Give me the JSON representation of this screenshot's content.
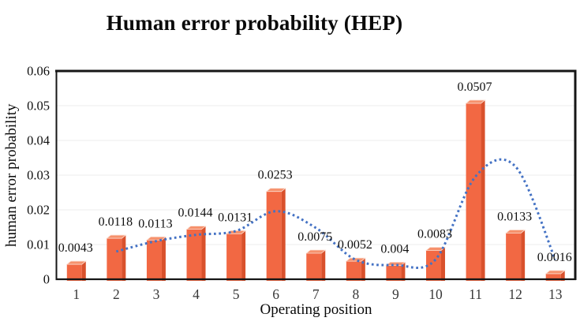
{
  "title": "Human error probability (HEP)",
  "chart_data": {
    "type": "bar",
    "title": "Human error probability (HEP)",
    "xlabel": "Operating position",
    "ylabel": "human error probability",
    "categories": [
      "1",
      "2",
      "3",
      "4",
      "5",
      "6",
      "7",
      "8",
      "9",
      "10",
      "11",
      "12",
      "13"
    ],
    "ylim": [
      0,
      0.06
    ],
    "yticks": [
      "0",
      "0.01",
      "0.02",
      "0.03",
      "0.04",
      "0.05",
      "0.06"
    ],
    "grid": true,
    "legend": false,
    "series": [
      {
        "name": "HEP",
        "type": "bar",
        "values": [
          0.0043,
          0.0118,
          0.0113,
          0.0144,
          0.0131,
          0.0253,
          0.0075,
          0.0052,
          0.004,
          0.0083,
          0.0507,
          0.0133,
          0.0016
        ],
        "data_labels": [
          "0.0043",
          "0.0118",
          "0.0113",
          "0.0144",
          "0.0131",
          "0.0253",
          "0.0075",
          "0.0052",
          "0.004",
          "0.0083",
          "0.0507",
          "0.0133",
          "0.0016"
        ]
      },
      {
        "name": "trend-line",
        "type": "dotted_line",
        "x": [
          2,
          3,
          4,
          5,
          6,
          7,
          8,
          9,
          10,
          11,
          12,
          13
        ],
        "values": [
          0.008,
          0.011,
          0.0128,
          0.0139,
          0.0196,
          0.0148,
          0.0056,
          0.0041,
          0.0057,
          0.0296,
          0.0325,
          0.0056
        ]
      }
    ],
    "colors": {
      "bar_face": "#F26843",
      "bar_side": "#D9512C",
      "bar_top": "#F6916C",
      "bar_top_highlight": "#FBE0D4",
      "trend_line": "#4472C4",
      "gridline": "#ECECEC",
      "axis_border": "#161616"
    }
  }
}
